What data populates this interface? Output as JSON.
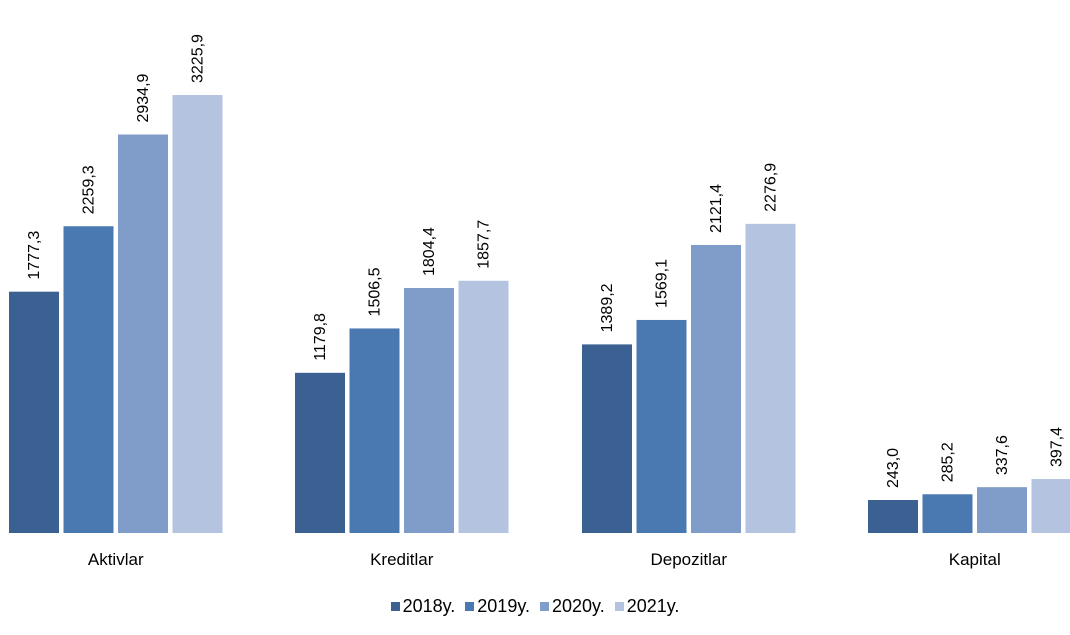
{
  "chart_data": {
    "type": "bar",
    "categories": [
      "Aktivlar",
      "Kreditlar",
      "Depozitlar",
      "Kapital"
    ],
    "series": [
      {
        "name": "2018y.",
        "color": "#3b6193",
        "values": [
          1777.3,
          1179.8,
          1389.2,
          243.0
        ],
        "labels": [
          "1777,3",
          "1179,8",
          "1389,2",
          "243,0"
        ]
      },
      {
        "name": "2019y.",
        "color": "#4a78b0",
        "values": [
          2259.3,
          1506.5,
          1569.1,
          285.2
        ],
        "labels": [
          "2259,3",
          "1506,5",
          "1569,1",
          "285,2"
        ]
      },
      {
        "name": "2020y.",
        "color": "#7f9dc8",
        "values": [
          2934.9,
          1804.4,
          2121.4,
          337.6
        ],
        "labels": [
          "2934,9",
          "1804,4",
          "2121,4",
          "337,6"
        ]
      },
      {
        "name": "2021y.",
        "color": "#b4c3df",
        "values": [
          3225.9,
          1857.7,
          2276.9,
          397.4
        ],
        "labels": [
          "3225,9",
          "1857,7",
          "2276,9",
          "397,4"
        ]
      }
    ],
    "ylim": [
      0,
      3225.9
    ],
    "grid": false,
    "legend_position": "bottom-center"
  }
}
